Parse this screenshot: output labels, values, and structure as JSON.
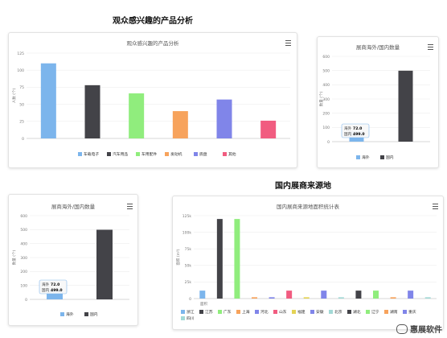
{
  "titles": {
    "products": "观众感兴趣的产品分析",
    "source": "国内展商来源地"
  },
  "colors": {
    "bar_blue": "#7cb5ec",
    "bar_dark": "#434348",
    "bar_green": "#90ed7d",
    "bar_orange": "#f7a35c",
    "bar_purple": "#8085e9",
    "bar_pink": "#f15c80",
    "bar_teal": "#a3d9d6",
    "axis": "#cccccc",
    "grid": "#eeeeee"
  },
  "watermark": {
    "icon": "wechat-icon",
    "text": "惠展软件"
  },
  "chart_data": [
    {
      "type": "bar",
      "title": "观众感兴趣的产品分析",
      "ylabel": "人数 (个)",
      "ylim": [
        0,
        125
      ],
      "yticks": [
        "0",
        "25",
        "50",
        "75",
        "100",
        "125"
      ],
      "grid": true,
      "legend_position": "bottom",
      "series": [
        {
          "name": "车载电子",
          "value": 110,
          "color": "#7cb5ec"
        },
        {
          "name": "汽车用品",
          "value": 78,
          "color": "#434348"
        },
        {
          "name": "车用配件",
          "value": 66,
          "color": "#90ed7d"
        },
        {
          "name": "发动机",
          "value": 40,
          "color": "#f7a35c"
        },
        {
          "name": "底盘",
          "value": 57,
          "color": "#8085e9"
        },
        {
          "name": "其他",
          "value": 26,
          "color": "#f15c80"
        }
      ]
    },
    {
      "type": "bar",
      "title": "展商海外/国内数量",
      "ylabel": "数量 (个)",
      "ylim": [
        0,
        600
      ],
      "yticks": [
        "0",
        "100",
        "200",
        "300",
        "400",
        "500",
        "600"
      ],
      "grid": true,
      "legend_position": "bottom",
      "tooltip": {
        "line1_label": "海外",
        "line1_value": "72.0",
        "line2_label": "国内",
        "line2_value": "499.0"
      },
      "series": [
        {
          "name": "海外",
          "value": 72,
          "color": "#7cb5ec"
        },
        {
          "name": "国内",
          "value": 499,
          "color": "#434348"
        }
      ]
    },
    {
      "type": "bar",
      "title": "展商海外/国内数量",
      "ylabel": "数量 (个)",
      "ylim": [
        0,
        600
      ],
      "yticks": [
        "0",
        "100",
        "200",
        "300",
        "400",
        "500",
        "600"
      ],
      "grid": true,
      "legend_position": "bottom",
      "tooltip": {
        "line1_label": "海外",
        "line1_value": "72.0",
        "line2_label": "国内",
        "line2_value": "499.0"
      },
      "series": [
        {
          "name": "海外",
          "value": 72,
          "color": "#7cb5ec"
        },
        {
          "name": "国内",
          "value": 499,
          "color": "#434348"
        }
      ]
    },
    {
      "type": "bar",
      "title": "国内展商来源地面积统计表",
      "ylabel": "面积 (m²)",
      "xlabel": "面积",
      "ylim": [
        0,
        125000
      ],
      "yticks": [
        "0",
        "25k",
        "50k",
        "75k",
        "100k",
        "125k"
      ],
      "grid": true,
      "legend_position": "bottom",
      "series": [
        {
          "name": "浙江",
          "value": 12000,
          "color": "#7cb5ec"
        },
        {
          "name": "江苏",
          "value": 120000,
          "color": "#434348"
        },
        {
          "name": "广东",
          "value": 120000,
          "color": "#90ed7d"
        },
        {
          "name": "上海",
          "value": 2000,
          "color": "#f7a35c"
        },
        {
          "name": "河北",
          "value": 2000,
          "color": "#8085e9"
        },
        {
          "name": "山东",
          "value": 12000,
          "color": "#f15c80"
        },
        {
          "name": "福建",
          "value": 2000,
          "color": "#e4d354"
        },
        {
          "name": "安徽",
          "value": 12000,
          "color": "#8085e9"
        },
        {
          "name": "北京",
          "value": 2000,
          "color": "#a3d9d6"
        },
        {
          "name": "湖北",
          "value": 12000,
          "color": "#434348"
        },
        {
          "name": "辽宁",
          "value": 12000,
          "color": "#90ed7d"
        },
        {
          "name": "湖南",
          "value": 2000,
          "color": "#f7a35c"
        },
        {
          "name": "重庆",
          "value": 12000,
          "color": "#8085e9"
        },
        {
          "name": "四川",
          "value": 2000,
          "color": "#a3d9d6"
        }
      ]
    }
  ]
}
